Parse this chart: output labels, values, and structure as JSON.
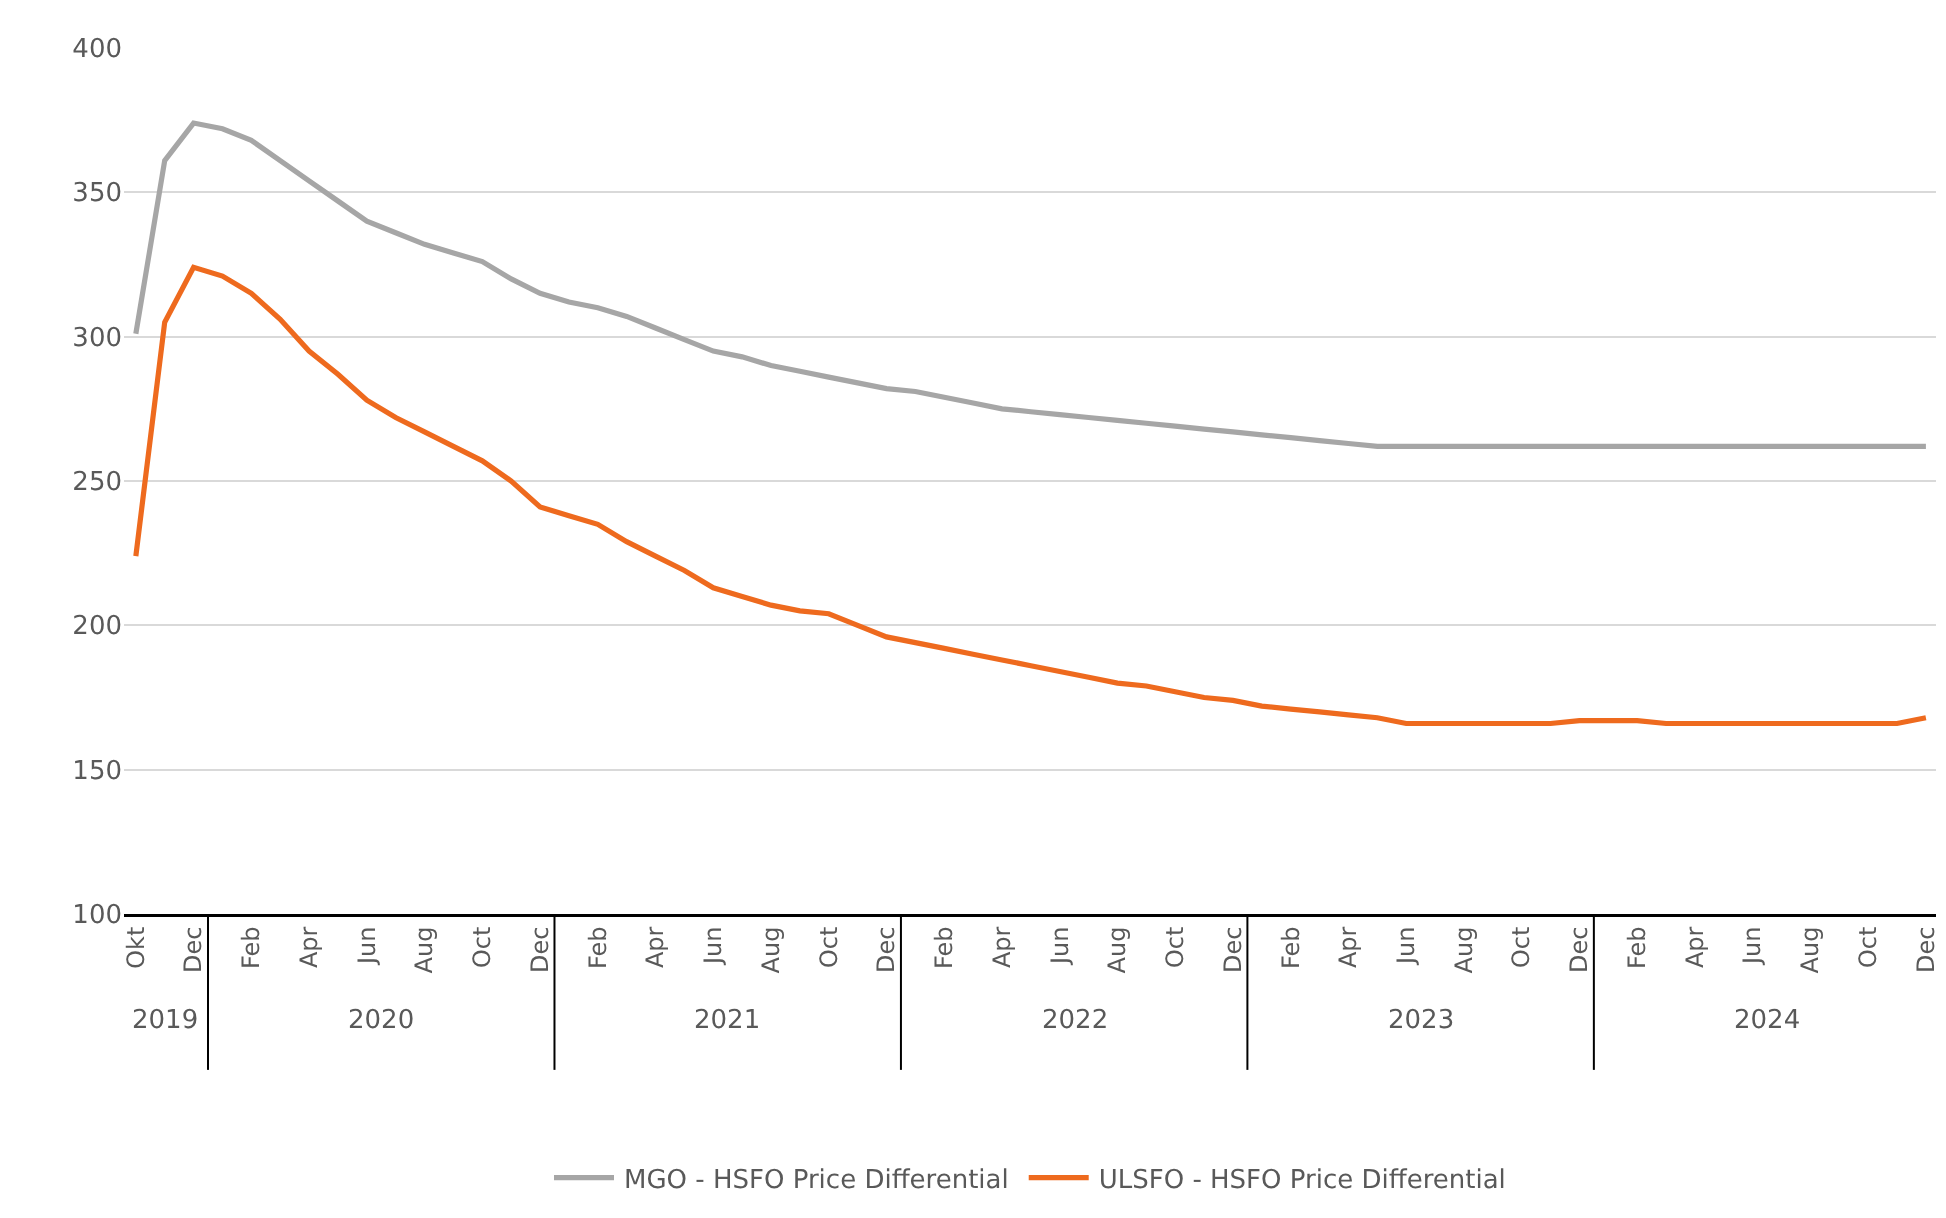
{
  "chart_data": {
    "type": "line",
    "categories": [
      "Okt",
      null,
      "Dec",
      null,
      "Feb",
      null,
      "Apr",
      null,
      "Jun",
      null,
      "Aug",
      null,
      "Oct",
      null,
      "Dec",
      null,
      "Feb",
      null,
      "Apr",
      null,
      "Jun",
      null,
      "Aug",
      null,
      "Oct",
      null,
      "Dec",
      null,
      "Feb",
      null,
      "Apr",
      null,
      "Jun",
      null,
      "Aug",
      null,
      "Oct",
      null,
      "Dec",
      null,
      "Feb",
      null,
      "Apr",
      null,
      "Jun",
      null,
      "Aug",
      null,
      "Oct",
      null,
      "Dec",
      null,
      "Feb",
      null,
      "Apr",
      null,
      "Jun",
      null,
      "Aug",
      null,
      "Oct",
      null,
      "Dec"
    ],
    "series": [
      {
        "name": "MGO - HSFO Price Differential",
        "color": "#a6a6a6",
        "values": [
          301,
          361,
          374,
          372,
          368,
          361,
          354,
          347,
          340,
          336,
          332,
          329,
          326,
          320,
          315,
          312,
          310,
          307,
          303,
          299,
          295,
          293,
          290,
          288,
          286,
          284,
          282,
          281,
          279,
          277,
          275,
          274,
          273,
          272,
          271,
          270,
          269,
          268,
          267,
          266,
          265,
          264,
          263,
          262,
          262,
          262,
          262,
          262,
          262,
          262,
          262,
          262,
          262,
          262,
          262,
          262,
          262,
          262,
          262,
          262,
          262,
          262,
          262
        ]
      },
      {
        "name": "ULSFO - HSFO Price Differential",
        "color": "#ee6a1e",
        "values": [
          224,
          305,
          324,
          321,
          315,
          306,
          295,
          287,
          278,
          272,
          267,
          262,
          257,
          250,
          241,
          238,
          235,
          229,
          224,
          219,
          213,
          210,
          207,
          205,
          204,
          200,
          196,
          194,
          192,
          190,
          188,
          186,
          184,
          182,
          180,
          179,
          177,
          175,
          174,
          172,
          171,
          170,
          169,
          168,
          166,
          166,
          166,
          166,
          166,
          166,
          167,
          167,
          167,
          166,
          166,
          166,
          166,
          166,
          166,
          166,
          166,
          166,
          168
        ]
      }
    ],
    "annotations": [
      "2019",
      "2020",
      "2021",
      "2022",
      "2023",
      "2024"
    ],
    "ylim": [
      100,
      400
    ],
    "yticks": [
      100,
      150,
      200,
      250,
      300,
      350,
      400
    ],
    "grid": "y",
    "legend": "bottom",
    "line_style": "solid",
    "marker": "none"
  }
}
